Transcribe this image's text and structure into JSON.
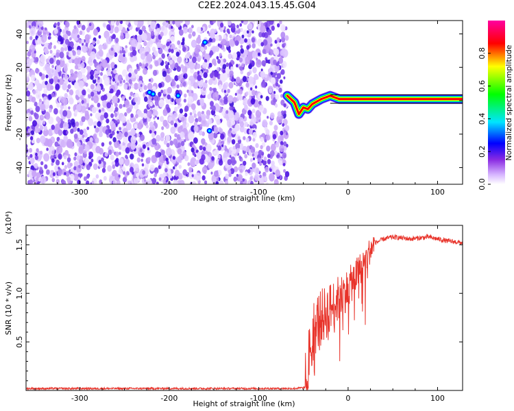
{
  "title": "C2E2.2024.043.15.45.G04",
  "chart_data": [
    {
      "type": "heatmap",
      "xlabel": "Height of straight line (km)",
      "ylabel": "Frequency (Hz)",
      "xlim": [
        -360,
        128
      ],
      "ylim": [
        -50,
        48
      ],
      "xticks": [
        -300,
        -200,
        -100,
        0,
        100
      ],
      "yticks": [
        -40,
        -20,
        0,
        20,
        40
      ],
      "colorbar": {
        "label": "Normalized spectral amplitude",
        "range": [
          0,
          1
        ],
        "ticks": [
          "0.0",
          "0.2",
          "0.4",
          "0.6",
          "0.8"
        ],
        "colormap": "rainbow (white-violet-blue-cyan-green-yellow-red-magenta)"
      },
      "features": [
        {
          "description": "noise region",
          "x_range": [
            -360,
            -68
          ],
          "amplitude_range": [
            0.0,
            0.25
          ]
        },
        {
          "description": "signal track",
          "points": [
            [
              -68,
              3
            ],
            [
              -60,
              -1
            ],
            [
              -55,
              -8
            ],
            [
              -50,
              -4
            ],
            [
              -45,
              -5
            ],
            [
              -40,
              -2
            ],
            [
              -30,
              1
            ],
            [
              -20,
              3
            ],
            [
              -10,
              1
            ],
            [
              0,
              1
            ],
            [
              50,
              1
            ],
            [
              100,
              1
            ],
            [
              128,
              1
            ]
          ],
          "amplitude": 0.9
        }
      ]
    },
    {
      "type": "line",
      "xlabel": "Height of straight line (km)",
      "ylabel": "SNR (10 * v/v)",
      "yscale_label": "(x10⁴)",
      "xlim": [
        -360,
        128
      ],
      "ylim": [
        0,
        1.7
      ],
      "xticks": [
        -300,
        -200,
        -100,
        0,
        100
      ],
      "yticks": [
        "0.5",
        "1.0",
        "1.5"
      ],
      "series": [
        {
          "color": "#e8332a",
          "x": [
            -360,
            -300,
            -200,
            -100,
            -60,
            -48,
            -45,
            -42,
            -40,
            -35,
            -30,
            -25,
            -20,
            -15,
            -10,
            -5,
            0,
            10,
            20,
            25,
            30,
            40,
            50,
            60,
            70,
            80,
            90,
            100,
            110,
            120,
            128
          ],
          "y": [
            0.02,
            0.02,
            0.02,
            0.02,
            0.02,
            0.03,
            0.2,
            0.5,
            0.6,
            0.7,
            0.75,
            0.8,
            0.85,
            0.9,
            0.95,
            1.0,
            1.05,
            1.2,
            1.35,
            1.45,
            1.52,
            1.56,
            1.58,
            1.57,
            1.56,
            1.57,
            1.58,
            1.56,
            1.54,
            1.53,
            1.52
          ]
        }
      ]
    }
  ]
}
